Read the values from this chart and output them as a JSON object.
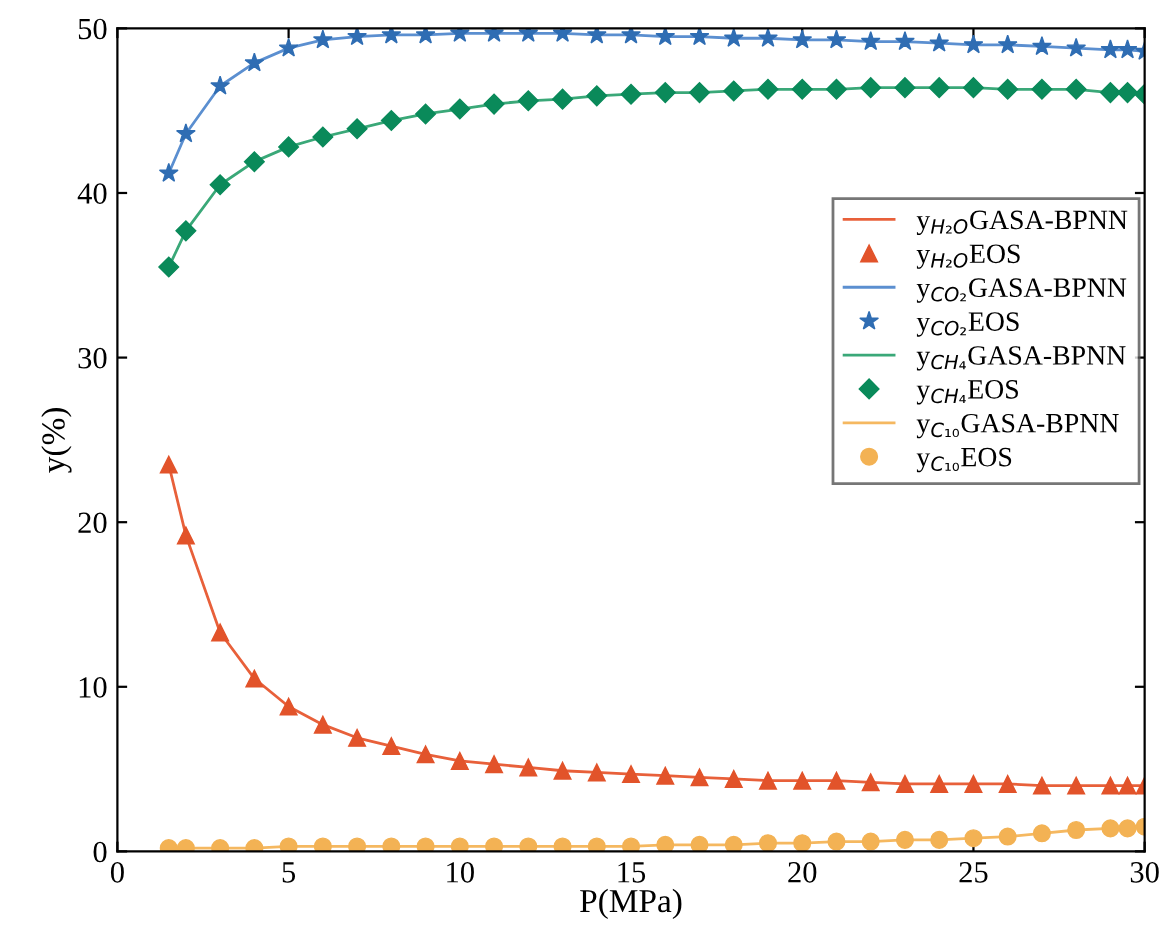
{
  "chart_data": {
    "type": "line",
    "xlabel": "P(MPa)",
    "ylabel": "y(%)",
    "xlim": [
      0,
      30
    ],
    "ylim": [
      0,
      50
    ],
    "xticks": [
      0,
      5,
      10,
      15,
      20,
      25,
      30
    ],
    "yticks": [
      0,
      10,
      20,
      30,
      40,
      50
    ],
    "grid": false,
    "legend": "right",
    "x": [
      1.5,
      2,
      3,
      4,
      5,
      6,
      7,
      8,
      9,
      10,
      11,
      12,
      13,
      14,
      15,
      16,
      17,
      18,
      19,
      20,
      21,
      22,
      23,
      24,
      25,
      26,
      27,
      28,
      29,
      29.5,
      30
    ],
    "series": [
      {
        "name": "y$_{H₂O}$GASA-BPNN",
        "color": "#e8603a",
        "marker": "none",
        "values": [
          23.5,
          19.2,
          13.3,
          10.5,
          8.8,
          7.7,
          6.9,
          6.4,
          5.9,
          5.5,
          5.3,
          5.1,
          4.9,
          4.8,
          4.7,
          4.6,
          4.5,
          4.4,
          4.3,
          4.3,
          4.3,
          4.2,
          4.1,
          4.1,
          4.1,
          4.1,
          4.0,
          4.0,
          4.0,
          4.0,
          4.0
        ]
      },
      {
        "name": "y$_{H₂O}$EOS",
        "type": "scatter",
        "color": "#e2532a",
        "marker": "triangle",
        "values": [
          23.5,
          19.2,
          13.3,
          10.5,
          8.8,
          7.7,
          6.9,
          6.4,
          5.9,
          5.5,
          5.3,
          5.1,
          4.9,
          4.8,
          4.7,
          4.6,
          4.5,
          4.4,
          4.3,
          4.3,
          4.3,
          4.2,
          4.1,
          4.1,
          4.1,
          4.1,
          4.0,
          4.0,
          4.0,
          4.0,
          4.0
        ]
      },
      {
        "name": "y$_{CO₂}$GASA-BPNN",
        "color": "#5b8fd0",
        "marker": "none",
        "values": [
          41.2,
          43.6,
          46.5,
          47.9,
          48.8,
          49.3,
          49.5,
          49.6,
          49.6,
          49.7,
          49.7,
          49.7,
          49.7,
          49.6,
          49.6,
          49.5,
          49.5,
          49.4,
          49.4,
          49.3,
          49.3,
          49.2,
          49.2,
          49.1,
          49.0,
          49.0,
          48.9,
          48.8,
          48.7,
          48.7,
          48.6
        ]
      },
      {
        "name": "y$_{CO₂}$EOS",
        "type": "scatter",
        "color": "#2f6db3",
        "marker": "star",
        "values": [
          41.2,
          43.6,
          46.5,
          47.9,
          48.8,
          49.3,
          49.5,
          49.6,
          49.6,
          49.7,
          49.7,
          49.7,
          49.7,
          49.6,
          49.6,
          49.5,
          49.5,
          49.4,
          49.4,
          49.3,
          49.3,
          49.2,
          49.2,
          49.1,
          49.0,
          49.0,
          48.9,
          48.8,
          48.7,
          48.7,
          48.6
        ]
      },
      {
        "name": "y$_{CH₄}$GASA-BPNN",
        "color": "#3aa878",
        "marker": "none",
        "values": [
          35.5,
          37.7,
          40.5,
          41.9,
          42.8,
          43.4,
          43.9,
          44.4,
          44.8,
          45.1,
          45.4,
          45.6,
          45.7,
          45.9,
          46.0,
          46.1,
          46.1,
          46.2,
          46.3,
          46.3,
          46.3,
          46.4,
          46.4,
          46.4,
          46.4,
          46.3,
          46.3,
          46.3,
          46.1,
          46.1,
          46.0
        ]
      },
      {
        "name": "y$_{CH₄}$EOS",
        "type": "scatter",
        "color": "#0a8a5a",
        "marker": "diamond",
        "values": [
          35.5,
          37.7,
          40.5,
          41.9,
          42.8,
          43.4,
          43.9,
          44.4,
          44.8,
          45.1,
          45.4,
          45.6,
          45.7,
          45.9,
          46.0,
          46.1,
          46.1,
          46.2,
          46.3,
          46.3,
          46.3,
          46.4,
          46.4,
          46.4,
          46.4,
          46.3,
          46.3,
          46.3,
          46.1,
          46.1,
          46.0
        ]
      },
      {
        "name": "y$_{C₁₀}$GASA-BPNN",
        "color": "#f5b860",
        "marker": "none",
        "values": [
          0.2,
          0.2,
          0.2,
          0.2,
          0.3,
          0.3,
          0.3,
          0.3,
          0.3,
          0.3,
          0.3,
          0.3,
          0.3,
          0.3,
          0.3,
          0.4,
          0.4,
          0.4,
          0.5,
          0.5,
          0.6,
          0.6,
          0.7,
          0.7,
          0.8,
          0.9,
          1.1,
          1.3,
          1.4,
          1.4,
          1.5
        ]
      },
      {
        "name": "y$_{C₁₀}$EOS",
        "type": "scatter",
        "color": "#f3b254",
        "marker": "circle",
        "values": [
          0.2,
          0.2,
          0.2,
          0.2,
          0.3,
          0.3,
          0.3,
          0.3,
          0.3,
          0.3,
          0.3,
          0.3,
          0.3,
          0.3,
          0.3,
          0.4,
          0.4,
          0.4,
          0.5,
          0.5,
          0.6,
          0.6,
          0.7,
          0.7,
          0.8,
          0.9,
          1.1,
          1.3,
          1.4,
          1.4,
          1.5
        ]
      }
    ]
  }
}
